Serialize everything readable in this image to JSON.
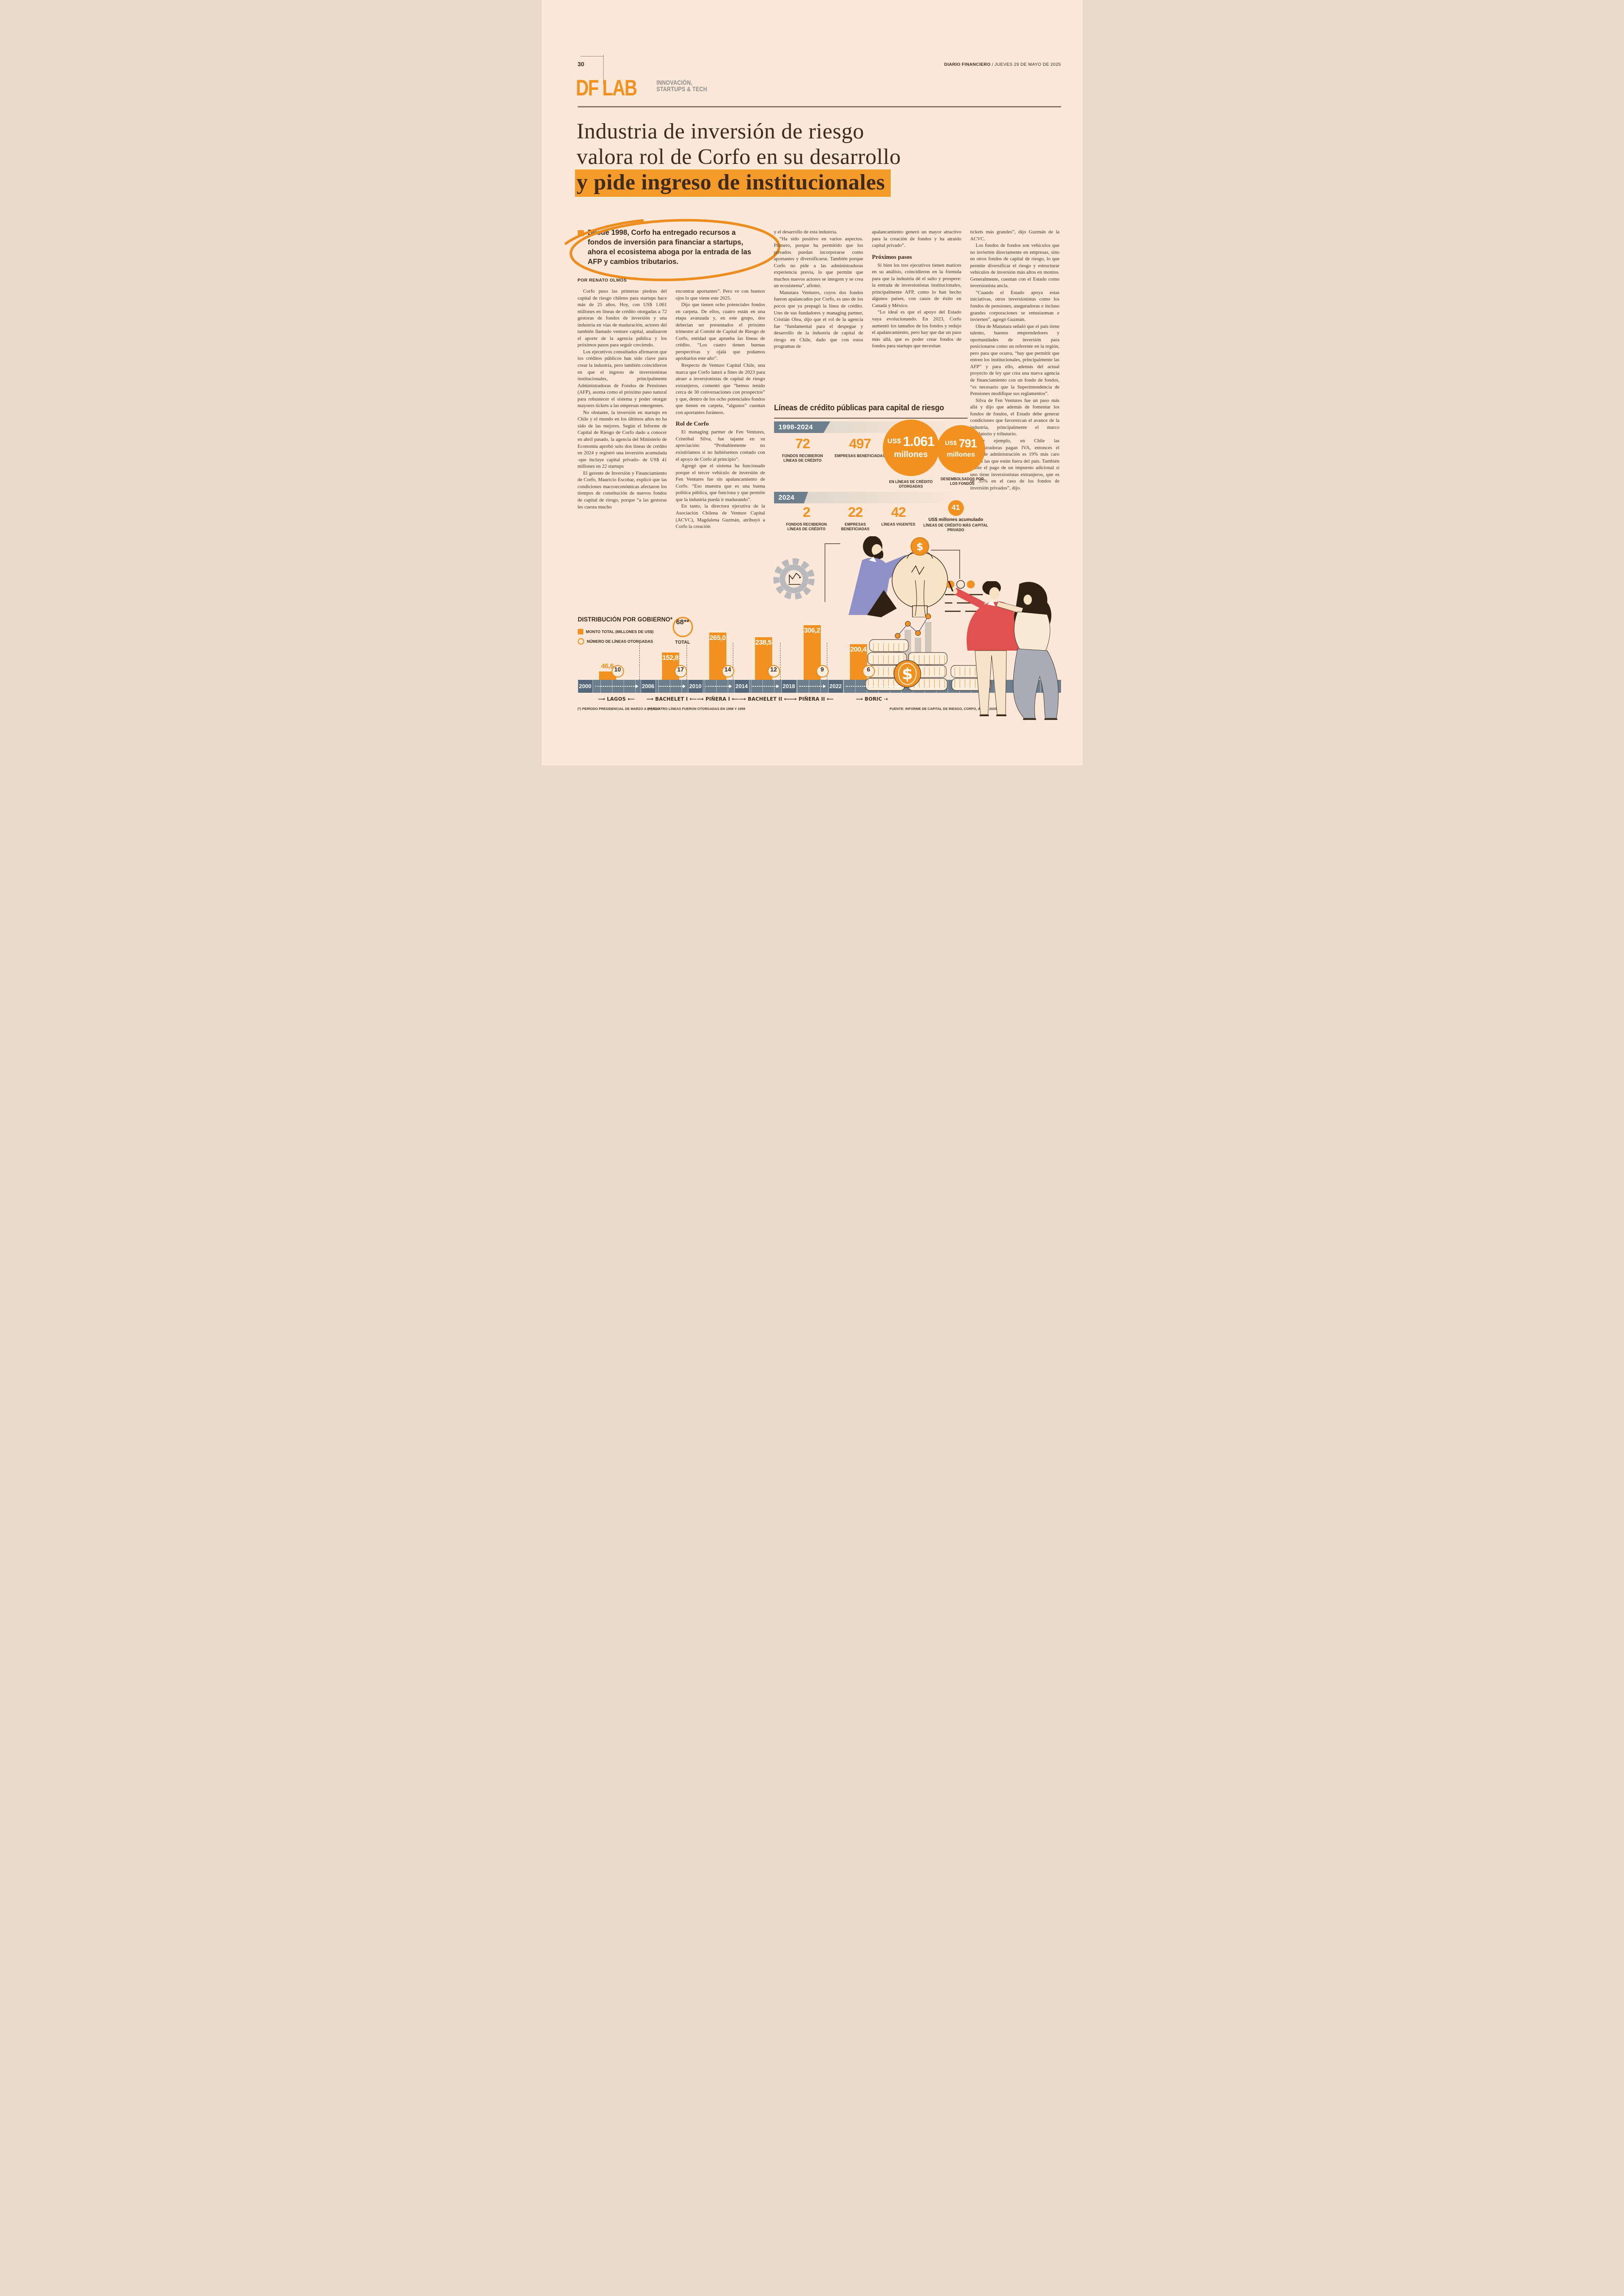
{
  "header": {
    "page_number": "30",
    "masthead": "DIARIO FINANCIERO",
    "date": " / JUEVES 29 DE MAYO DE 2025"
  },
  "brand": {
    "logo": "DF LAB",
    "tagline_line1": "INNOVACIÓN,",
    "tagline_line2": "STARTUPS & TECH"
  },
  "headline": {
    "line1": "Industria de inversión de riesgo",
    "line2": "valora rol de Corfo en su desarrollo",
    "line3": "y pide ingreso de institucionales"
  },
  "lede": {
    "text": "Desde 1998, Corfo ha entregado recursos a fondos de inversión para financiar a startups, ahora el ecosistema aboga por la entrada de las AFP y cambios tributarios.",
    "byline": "POR RENATO OLMOS"
  },
  "article": {
    "col1": [
      {
        "t": "p",
        "x": "Corfo puso las primeras piedras del capital de riesgo chileno para startups hace más de 25 años. Hoy, con US$ 1.061 millones en líneas de crédito otorgadas a 72 gestoras de fondos de inversión y una industria en vías de maduración, actores del también llamado venture capital, analizaron el aporte de la agencia pública y los próximos pasos para seguir creciendo."
      },
      {
        "t": "p",
        "x": "Los ejecutivos consultados afirmaron que los créditos públicos han sido clave para crear la industria, pero también coincidieron en que el ingreso de inversionistas institucionales, principalmente Administradoras de Fondos de Pensiones (AFP), asoma como el próximo paso natural para robustecer el sistema y poder otorgar mayores tickets a las empresas emergentes."
      },
      {
        "t": "p",
        "x": "No obstante, la inversión en startups en Chile y el mundo en los últimos años no ha sido de las mejores. Según el Informe de Capital de Riesgo de Corfo dado a conocer en abril pasado, la agencia del Ministerio de Economía aprobó solo dos líneas de crédito en 2024 y registró una inversión acumulada -que incluye capital privado- de US$ 41 millones en 22 startups"
      },
      {
        "t": "p",
        "x": "El gerente de Inversión y Financiamiento de Corfo, Mauricio Escobar, explicó que las condiciones macroeconómicas afectaron los tiempos de constitución de nuevos fondos de capital de riesgo, porque “a las gestoras les cuesta mucho"
      }
    ],
    "col2": [
      {
        "t": "p0",
        "x": "encontrar aportantes”. Pero ve con buenos ojos lo que viene este 2025."
      },
      {
        "t": "p",
        "x": "Dijo que tienen ocho potenciales fondos en carpeta. De ellos, cuatro están en una etapa avanzada y, en este grupo, dos deberían ser presentados el próximo trimestre al Comité de Capital de Riesgo de Corfo, entidad que aprueba las líneas de crédito. “Los cuatro tienen buenas perspectivas y ojalá que podamos aprobarlos este año”."
      },
      {
        "t": "p",
        "x": "Respecto de Venture Capital Chile, una marca que Corfo lanzó a fines de 2023 para atraer a inversionistas de capital de riesgo extranjeros, comentó que “hemos tenido cerca de 30 conversaciones con prospectos” y que, dentro de los ocho potenciales fondos que tienen en carpeta, “algunos” cuentan con aportantes foráneos."
      },
      {
        "t": "h",
        "x": "Rol de Corfo"
      },
      {
        "t": "p",
        "x": "El managing partner de Fen Ventures, Cristóbal Silva, fue tajante en su apreciación: “Probablemente no existiríamos si no hubiésemos contado con el apoyo de Corfo al principio”."
      },
      {
        "t": "p",
        "x": "Agregó que el sistema ha funcionado porque el tercer vehículo de inversión de Fen Ventures fue sin apalancamiento de Corfo. “Eso muestra que es una buena política pública, que funciona y que permite que la industria pueda ir madurando”."
      },
      {
        "t": "p",
        "x": "En tanto, la directora ejecutiva de la Asociación Chilena de Venture Capital (ACVC), Magdalena Guzmán, atribuyó a Corfo la creación"
      }
    ],
    "col3": [
      {
        "t": "p0",
        "x": "y el desarrollo de esta industria."
      },
      {
        "t": "p",
        "x": "“Ha sido positivo en varios aspectos. Primero, porque ha permitido que los privados puedan incorporarse como aportantes y diversificarse. También porque Corfo no pide a las administradoras experiencia previa, lo que permite que muchos nuevos actores se integren y se crea un ecosistema”, afirmó."
      },
      {
        "t": "p",
        "x": "Manutara Ventures, cuyos dos fondos fueron apalancados por Corfo, es uno de los pocos que ya prepagó la línea de crédito. Uno de sus fundadores y managing partner, Cristián Olea, dijo que el rol de la agencia fue “fundamental para el despegue y desarrollo de la industria de capital de riesgo en Chile, dado que con estos programas de"
      }
    ],
    "col4": [
      {
        "t": "p0",
        "x": "apalancamiento generó un mayor atractivo para la creación de fondos y ha atraído capital privado”."
      },
      {
        "t": "h",
        "x": "Próximos pasos"
      },
      {
        "t": "p",
        "x": "Si bien los tres ejecutivos tienen matices en su análisis, coincidieron en la fórmula para que la industria dé el salto y prospere: la entrada de inversionistas institucionales, principalmente AFP, como lo han hecho algunos países, con casos de éxito en Canadá y México."
      },
      {
        "t": "p",
        "x": "“Lo ideal es que el apoyo del Estado vaya evolucionando. En 2023, Corfo aumentó los tamaños de los fondos y redujo el apalancamiento, pero hay que dar un paso más allá, que es poder crear fondos de fondos para startups que necesitan"
      }
    ],
    "col5": [
      {
        "t": "p0",
        "x": "tickets más grandes”, dijo Guzmán de la ACVC."
      },
      {
        "t": "p",
        "x": "Los fondos de fondos son vehículos que no invierten directamente en empresas, sino en otros fondos de capital de riesgo, lo que permite diversificar el riesgo y estructurar vehículos de inversión más altos en montos. Generalmente, cuentan con el Estado como inversionista ancla."
      },
      {
        "t": "p",
        "x": "“Cuando el Estado apoya estas iniciativas, otros inversionistas como los fondos de pensiones, aseguradoras e incluso grandes corporaciones se entusiasman e invierten”, agregó Guzmán."
      },
      {
        "t": "p",
        "x": "Olea de Manutara señaló que el país tiene talento, buenos emprendedores y oportunidades de inversión para posicionarse como un referente en la región, pero para que ocurra, “hay que permitir que entren los institucionales, principalmente las AFP” y para ello, además del actual proyecto de ley que crea una nueva agencia de financiamiento con un fondo de fondos, “es necesario que la Superintendencia de Pensiones modifique sus reglamentos”."
      },
      {
        "t": "p",
        "x": "Silva de Fen Ventures fue un paso más allá y dijo que además de fomentar los fondos de fondos, el Estado debe generar condiciones que favorezcan el avance de la industria, principalmente el marco regulatorio y tributario."
      },
      {
        "t": "p",
        "x": "“Por ejemplo, en Chile las administradoras pagan IVA, entonces el costo de administración es 19% más caro versus las que están fuera del país. También existe el pago de un impuesto adicional si uno tiene inversionistas extranjeros, que es de 35% en el caso de los fondos de inversión privados”, dijo."
      }
    ]
  },
  "infographic": {
    "title": "Líneas de crédito públicas para capital de riesgo",
    "period1": {
      "badge": "1998-2024",
      "stat1": {
        "value": "72",
        "label": "FONDOS RECIBIERON LÍNEAS DE CRÉDITO"
      },
      "stat2": {
        "value": "497",
        "label": "EMPRESAS BENEFICIADAS"
      },
      "bubble1": {
        "currency": "US$",
        "value": "1.061",
        "unit": "millones",
        "label": "EN LÍNEAS DE CRÉDITO OTORGADAS"
      },
      "bubble2": {
        "currency": "US$",
        "value": "791",
        "unit": "millones",
        "label": "DESEMBOLSADOS POR LOS FONDOS"
      }
    },
    "period2": {
      "badge": "2024",
      "stat1": {
        "value": "2",
        "label": "FONDOS RECIBIERON LÍNEAS DE CRÉDITO"
      },
      "stat2": {
        "value": "22",
        "label": "EMPRESAS BENEFICIADAS"
      },
      "stat3": {
        "value": "42",
        "label": "LÍNEAS VIGENTES"
      },
      "accum": {
        "value": "41",
        "bold_label": "US$ millones acumulado",
        "label": "LÍNEAS DE CRÉDITO MÁS CAPITAL PRIVADO"
      }
    }
  },
  "chart_data": {
    "type": "bar",
    "title": "DISTRIBUCIÓN POR GOBIERNO*",
    "legend": [
      "MONTO TOTAL (MILLONES DE US$)",
      "NÚMERO DE LÍNEAS OTORGADAS"
    ],
    "categories": [
      "LAGOS",
      "BACHELET I",
      "PIÑERA I",
      "BACHELET II",
      "PIÑERA II",
      "BORIC"
    ],
    "series": [
      {
        "name": "MONTO TOTAL (MILLONES DE US$)",
        "values": [
          46.6,
          152.8,
          265.0,
          238.5,
          306.2,
          200.4
        ],
        "labels": [
          "46,6",
          "152,8",
          "265,0",
          "238,5",
          "306,2",
          "200,4"
        ],
        "color": "#f2911f"
      },
      {
        "name": "NÚMERO DE LÍNEAS OTORGADAS",
        "values": [
          10,
          17,
          14,
          12,
          9,
          6
        ]
      }
    ],
    "total": {
      "value": "68**",
      "label": "TOTAL"
    },
    "timeline_years": [
      "2000",
      "2006",
      "2010",
      "2014",
      "2018",
      "2022"
    ],
    "ylim": [
      0,
      306.2
    ],
    "grid": false,
    "legend_position": "top-left",
    "footnotes": [
      "(*) PERÍODO PRESIDENCIAL DE MARZO A MARZO",
      "(**) CUATRO LÍNEAS FUERON OTORGADAS EN 1998 Y 1999"
    ],
    "source": "FUENTE: INFORME DE CAPITAL DE RIESGO, CORFO, ABRIL 2025"
  }
}
